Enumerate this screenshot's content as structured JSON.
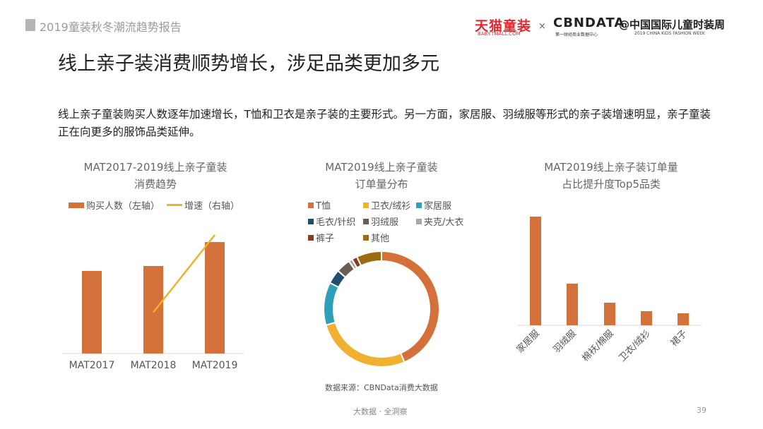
{
  "header": {
    "title": "2019童装秋冬潮流趋势报告",
    "logo_tmall": "天猫童装",
    "logo_tmall_sub": "BABY.TMALL.COM",
    "times": "×",
    "logo_cbn": "CBNDATA",
    "logo_cbn_sub": "第一财经商业数据中心",
    "logo_ckfw": "@中国国际儿童时装周",
    "logo_ckfw_sub": "2019 CHINA KIDS FASHION WEEK"
  },
  "main_title": "线上亲子装消费顺势增长，涉足品类更加多元",
  "description": "线上亲子童装购买人数逐年加速增长，T恤和卫衣是亲子装的主要形式。另一方面，家居服、羽绒服等形式的亲子装增速明显，亲子童装正在向更多的服饰品类延伸。",
  "source": "数据来源：CBNData消费大数据",
  "footer": "大数据 · 全洞察",
  "page_number": "39",
  "colors": {
    "bar": "#d4703a",
    "line": "#f0b030"
  },
  "chart_data": [
    {
      "type": "bar",
      "title_line1": "MAT2017-2019线上亲子童装",
      "title_line2": "消费趋势",
      "categories": [
        "MAT2017",
        "MAT2018",
        "MAT2019"
      ],
      "series": [
        {
          "name": "购买人数（左轴）",
          "kind": "bar",
          "values": [
            1.0,
            1.06,
            1.35
          ]
        },
        {
          "name": "增速（右轴）",
          "kind": "line",
          "values": [
            null,
            0.2,
            1.0
          ]
        }
      ],
      "note": "no axis tick labels shown; values are relative",
      "grid": false,
      "legend": "top"
    },
    {
      "type": "pie",
      "donut": true,
      "title_line1": "MAT2019线上亲子童装",
      "title_line2": "订单量分布",
      "labels": [
        "T恤",
        "卫衣/绒衫",
        "家居服",
        "毛衣/针织",
        "羽绒服",
        "夹克/大衣",
        "裤子",
        "其他"
      ],
      "values": [
        43.5,
        27,
        12,
        4,
        4,
        1,
        1.5,
        7
      ],
      "colors": [
        "#d4703a",
        "#f0b030",
        "#30a0b8",
        "#1f4e6e",
        "#6b5e55",
        "#a8a8a8",
        "#8b3a1e",
        "#9b6d10"
      ],
      "legend": "top"
    },
    {
      "type": "bar",
      "title_line1": "MAT2019线上亲子装订单量",
      "title_line2": "占比提升度Top5品类",
      "categories": [
        "家居服",
        "羽绒服",
        "棉袄/棉服",
        "卫衣/绒衫",
        "裙子"
      ],
      "values": [
        154,
        59,
        32,
        20,
        17
      ],
      "note": "no axis tick labels shown; values are relative",
      "grid": false
    }
  ]
}
